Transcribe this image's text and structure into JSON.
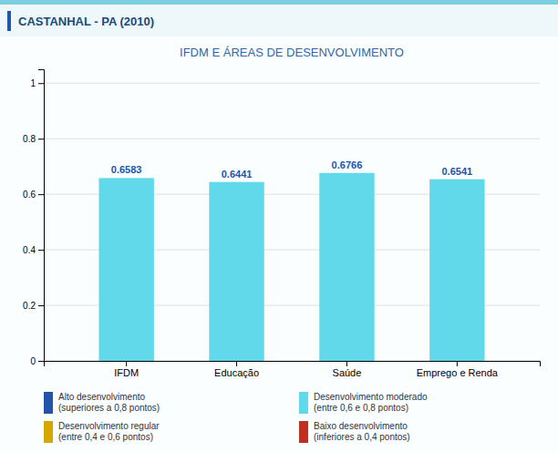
{
  "chart_data": {
    "type": "bar",
    "title": "CASTANHAL - PA (2010)",
    "subtitle": "IFDM E ÁREAS DE DESENVOLVIMENTO",
    "categories": [
      "IFDM",
      "Educação",
      "Saúde",
      "Emprego e Renda"
    ],
    "values": [
      0.6583,
      0.6441,
      0.6766,
      0.6541
    ],
    "color": "#62D9EA",
    "ylim": [
      0,
      1.05
    ],
    "yticks": [
      0,
      0.2,
      0.4,
      0.6,
      0.8,
      1
    ],
    "grid": true,
    "data_labels": true,
    "legend": "bottom",
    "legend_items": [
      {
        "labels": [
          "Alto desenvolvimento",
          "(superiores a 0,8 pontos)"
        ],
        "color": "#2255AA"
      },
      {
        "labels": [
          "Desenvolvimento moderado",
          "(entre 0,6 e 0,8 pontos)"
        ],
        "color": "#62D9EA"
      },
      {
        "labels": [
          "Desenvolvimento regular",
          "(entre 0,4 e 0,6 pontos)"
        ],
        "color": "#D4A800"
      },
      {
        "labels": [
          "Baixo desenvolvimento",
          "(inferiores a 0,4 pontos)"
        ],
        "color": "#C03020"
      }
    ]
  }
}
